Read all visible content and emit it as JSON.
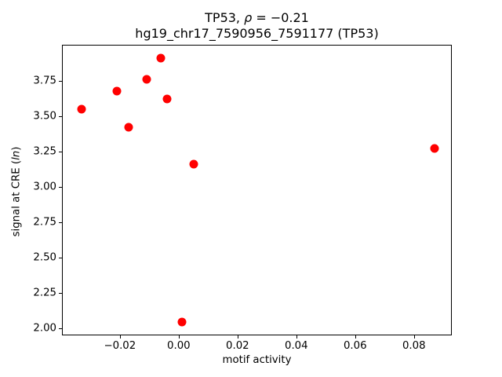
{
  "figure": {
    "background": "#ffffff",
    "text_color": "#000000"
  },
  "chart_data": {
    "type": "scatter",
    "title": "TP53, ρ = −0.21",
    "title_parts": {
      "prefix": "TP53, ",
      "rho": "ρ",
      "suffix": " = −0.21"
    },
    "subtitle": "hg19_chr17_7590956_7591177 (TP53)",
    "xlabel": "motif activity",
    "ylabel": "signal at CRE (ln)",
    "ylabel_parts": {
      "prefix": "signal at CRE (",
      "italic": "ln",
      "suffix": ")"
    },
    "marker_color": "#ff0000",
    "axis_color": "#000000",
    "grid": false,
    "legend": null,
    "xlim": [
      -0.0397,
      0.0926
    ],
    "ylim": [
      1.953,
      4.006
    ],
    "xticks": [
      -0.02,
      0.0,
      0.02,
      0.04,
      0.06,
      0.08
    ],
    "xtick_labels": [
      "−0.02",
      "0.00",
      "0.02",
      "0.04",
      "0.06",
      "0.08"
    ],
    "yticks": [
      2.0,
      2.25,
      2.5,
      2.75,
      3.0,
      3.25,
      3.5,
      3.75
    ],
    "ytick_labels": [
      "2.00",
      "2.25",
      "2.50",
      "2.75",
      "3.00",
      "3.25",
      "3.50",
      "3.75"
    ],
    "points": [
      {
        "x": -0.006,
        "y": 3.91
      },
      {
        "x": -0.011,
        "y": 3.76
      },
      {
        "x": -0.021,
        "y": 3.68
      },
      {
        "x": -0.004,
        "y": 3.62
      },
      {
        "x": -0.033,
        "y": 3.55
      },
      {
        "x": -0.017,
        "y": 3.42
      },
      {
        "x": 0.005,
        "y": 3.16
      },
      {
        "x": 0.087,
        "y": 3.27
      },
      {
        "x": 0.001,
        "y": 2.04
      }
    ]
  }
}
